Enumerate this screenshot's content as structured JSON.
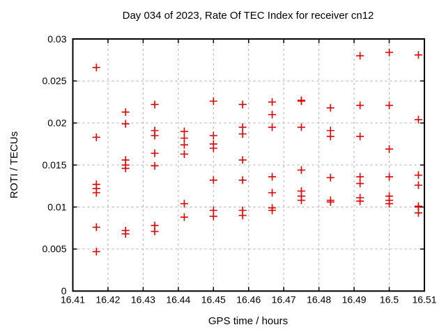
{
  "window": {
    "background": "#ffffff"
  },
  "chart_data": {
    "type": "scatter",
    "title": "Day 034 of 2023, Rate Of TEC Index for receiver cn12",
    "xlabel": "GPS time / hours",
    "ylabel": "ROTI / TECUs",
    "xlim": [
      16.41,
      16.51
    ],
    "ylim": [
      0,
      0.03
    ],
    "xticks": [
      16.41,
      16.42,
      16.43,
      16.44,
      16.45,
      16.46,
      16.47,
      16.48,
      16.49,
      16.5,
      16.51
    ],
    "xtick_labels": [
      "16.41",
      "16.42",
      "16.43",
      "16.44",
      "16.45",
      "16.46",
      "16.47",
      "16.48",
      "16.49",
      "16.5",
      "16.51"
    ],
    "yticks": [
      0,
      0.005,
      0.01,
      0.015,
      0.02,
      0.025,
      0.03
    ],
    "ytick_labels": [
      "0",
      "0.005",
      "0.01",
      "0.015",
      "0.02",
      "0.025",
      "0.03"
    ],
    "grid": true,
    "legend_position": "none",
    "marker": {
      "shape": "plus",
      "color": "#e00000",
      "size": 11
    },
    "axis_color": "#000000",
    "grid_color": "#b0b0b0",
    "series": [
      {
        "name": "ROTI",
        "points": [
          [
            16.4167,
            0.0266
          ],
          [
            16.4167,
            0.0183
          ],
          [
            16.4167,
            0.0127
          ],
          [
            16.4167,
            0.0122
          ],
          [
            16.4167,
            0.0117
          ],
          [
            16.4167,
            0.0076
          ],
          [
            16.4167,
            0.0047
          ],
          [
            16.425,
            0.0213
          ],
          [
            16.425,
            0.0199
          ],
          [
            16.425,
            0.0156
          ],
          [
            16.425,
            0.015
          ],
          [
            16.425,
            0.0146
          ],
          [
            16.425,
            0.0072
          ],
          [
            16.425,
            0.0068
          ],
          [
            16.4333,
            0.0222
          ],
          [
            16.4333,
            0.0191
          ],
          [
            16.4333,
            0.0185
          ],
          [
            16.4333,
            0.0164
          ],
          [
            16.4333,
            0.0149
          ],
          [
            16.4333,
            0.0078
          ],
          [
            16.4333,
            0.0071
          ],
          [
            16.4417,
            0.019
          ],
          [
            16.4417,
            0.0182
          ],
          [
            16.4417,
            0.0174
          ],
          [
            16.4417,
            0.0163
          ],
          [
            16.4417,
            0.0104
          ],
          [
            16.4417,
            0.0088
          ],
          [
            16.45,
            0.0226
          ],
          [
            16.45,
            0.0185
          ],
          [
            16.45,
            0.0175
          ],
          [
            16.45,
            0.017
          ],
          [
            16.45,
            0.0132
          ],
          [
            16.45,
            0.0096
          ],
          [
            16.45,
            0.0089
          ],
          [
            16.4583,
            0.0222
          ],
          [
            16.4583,
            0.0195
          ],
          [
            16.4583,
            0.0187
          ],
          [
            16.4583,
            0.0156
          ],
          [
            16.4583,
            0.0132
          ],
          [
            16.4583,
            0.0096
          ],
          [
            16.4583,
            0.009
          ],
          [
            16.4667,
            0.0225
          ],
          [
            16.4667,
            0.021
          ],
          [
            16.4667,
            0.0195
          ],
          [
            16.4667,
            0.0136
          ],
          [
            16.4667,
            0.0117
          ],
          [
            16.4667,
            0.0099
          ],
          [
            16.4667,
            0.0096
          ],
          [
            16.475,
            0.0227
          ],
          [
            16.475,
            0.0226
          ],
          [
            16.475,
            0.0195
          ],
          [
            16.475,
            0.0144
          ],
          [
            16.475,
            0.0119
          ],
          [
            16.475,
            0.0113
          ],
          [
            16.475,
            0.0108
          ],
          [
            16.4833,
            0.0218
          ],
          [
            16.4833,
            0.0191
          ],
          [
            16.4833,
            0.0184
          ],
          [
            16.4833,
            0.0135
          ],
          [
            16.4833,
            0.0108
          ],
          [
            16.4833,
            0.0106
          ],
          [
            16.4917,
            0.028
          ],
          [
            16.4917,
            0.0221
          ],
          [
            16.4917,
            0.0184
          ],
          [
            16.4917,
            0.0136
          ],
          [
            16.4917,
            0.0128
          ],
          [
            16.4917,
            0.0111
          ],
          [
            16.4917,
            0.0107
          ],
          [
            16.5,
            0.0284
          ],
          [
            16.5,
            0.0221
          ],
          [
            16.5,
            0.0169
          ],
          [
            16.5,
            0.0136
          ],
          [
            16.5,
            0.0113
          ],
          [
            16.5,
            0.0108
          ],
          [
            16.5,
            0.0104
          ],
          [
            16.5083,
            0.0281
          ],
          [
            16.5083,
            0.0204
          ],
          [
            16.5083,
            0.0138
          ],
          [
            16.5083,
            0.0126
          ],
          [
            16.5083,
            0.0101
          ],
          [
            16.5083,
            0.01
          ],
          [
            16.5083,
            0.0093
          ]
        ]
      }
    ]
  }
}
